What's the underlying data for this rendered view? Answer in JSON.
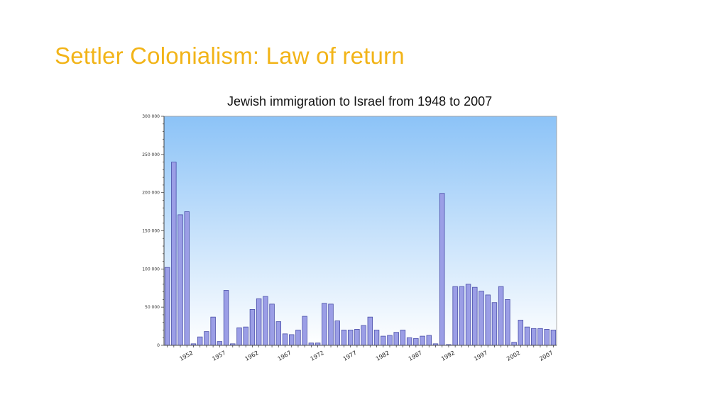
{
  "slide": {
    "title": "Settler Colonialism: Law of return"
  },
  "colors": {
    "title": "#f2b418",
    "bar_fill": "#9b9ee6",
    "bar_stroke": "#4a4fa8",
    "plot_top": "#8cc3f7",
    "plot_bottom": "#ffffff"
  },
  "chart_data": {
    "type": "bar",
    "title": "Jewish immigration to Israel from 1948 to 2007",
    "xlabel": "",
    "ylabel": "",
    "ylim": [
      0,
      300000
    ],
    "grid": false,
    "y_ticks": [
      0,
      50000,
      100000,
      150000,
      200000,
      250000,
      300000
    ],
    "y_tick_labels": [
      "0",
      "50 000",
      "100 000",
      "150 000",
      "200 000",
      "250 000",
      "300 000"
    ],
    "x_tick_labels": [
      "1952",
      "1957",
      "1962",
      "1967",
      "1972",
      "1977",
      "1982",
      "1987",
      "1992",
      "1997",
      "2002",
      "2007"
    ],
    "categories": [
      "1948",
      "1949",
      "1950",
      "1951",
      "1952",
      "1953",
      "1954",
      "1955",
      "1956",
      "1957",
      "1958",
      "1959",
      "1960",
      "1961",
      "1962",
      "1963",
      "1964",
      "1965",
      "1966",
      "1967",
      "1968",
      "1969",
      "1970",
      "1971",
      "1972",
      "1973",
      "1974",
      "1975",
      "1976",
      "1977",
      "1978",
      "1979",
      "1980",
      "1981",
      "1982",
      "1983",
      "1984",
      "1985",
      "1986",
      "1987",
      "1988",
      "1989",
      "1990",
      "1991",
      "1992",
      "1993",
      "1994",
      "1995",
      "1996",
      "1997",
      "1998",
      "1999",
      "2000",
      "2001",
      "2002",
      "2003",
      "2004",
      "2005",
      "2006",
      "2007"
    ],
    "values": [
      102000,
      240000,
      171000,
      175000,
      2000,
      11000,
      18000,
      37000,
      5000,
      72000,
      2000,
      23000,
      24000,
      47000,
      61000,
      64000,
      54000,
      31000,
      15000,
      14000,
      20000,
      38000,
      3000,
      3000,
      55000,
      54000,
      32000,
      20000,
      20000,
      21000,
      26000,
      37000,
      20000,
      12000,
      13000,
      17000,
      20000,
      10000,
      9000,
      12000,
      13000,
      2000,
      199000,
      1000,
      77000,
      77000,
      80000,
      76000,
      71000,
      66000,
      56000,
      77000,
      60000,
      4000,
      33000,
      24000,
      22000,
      22000,
      21000,
      20000
    ]
  }
}
